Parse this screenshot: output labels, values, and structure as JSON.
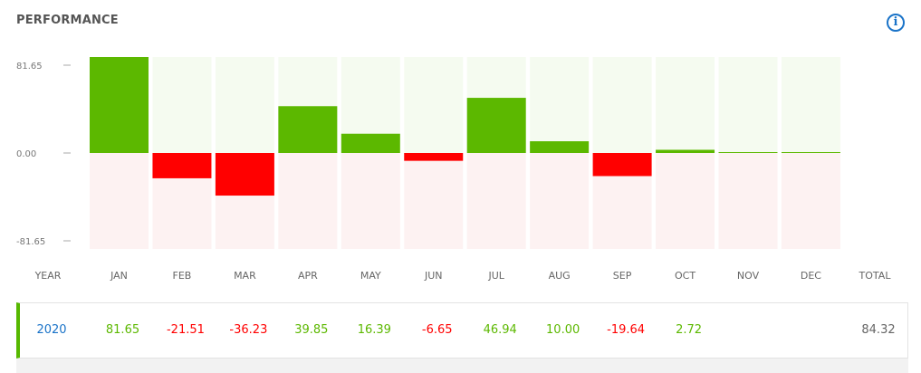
{
  "header": {
    "title": "PERFORMANCE",
    "info_icon": "info-icon",
    "info_glyph": "i"
  },
  "colors": {
    "positive": "#5cb800",
    "negative": "#ff0000",
    "positive_bg": "#f5fbf0",
    "negative_bg": "#fdf2f2",
    "year_text": "#1a73c8",
    "total_text": "#666666"
  },
  "chart_data": {
    "type": "bar",
    "categories": [
      "JAN",
      "FEB",
      "MAR",
      "APR",
      "MAY",
      "JUN",
      "JUL",
      "AUG",
      "SEP",
      "OCT",
      "NOV",
      "DEC"
    ],
    "series": [
      {
        "values": [
          81.65,
          -21.51,
          -36.23,
          39.85,
          16.39,
          -6.65,
          46.94,
          10.0,
          -19.64,
          2.72,
          0.5,
          0.5
        ]
      }
    ],
    "ylim": [
      -81.65,
      81.65
    ],
    "y_ticks": [
      "81.65",
      "0.00",
      "-81.65"
    ],
    "grid": false
  },
  "table": {
    "headers": {
      "year": "YEAR",
      "months": [
        "JAN",
        "FEB",
        "MAR",
        "APR",
        "MAY",
        "JUN",
        "JUL",
        "AUG",
        "SEP",
        "OCT",
        "NOV",
        "DEC"
      ],
      "total": "TOTAL"
    },
    "rows": [
      {
        "year": "2020",
        "months": [
          "81.65",
          "-21.51",
          "-36.23",
          "39.85",
          "16.39",
          "-6.65",
          "46.94",
          "10.00",
          "-19.64",
          "2.72",
          "",
          ""
        ],
        "total": "84.32"
      }
    ]
  }
}
